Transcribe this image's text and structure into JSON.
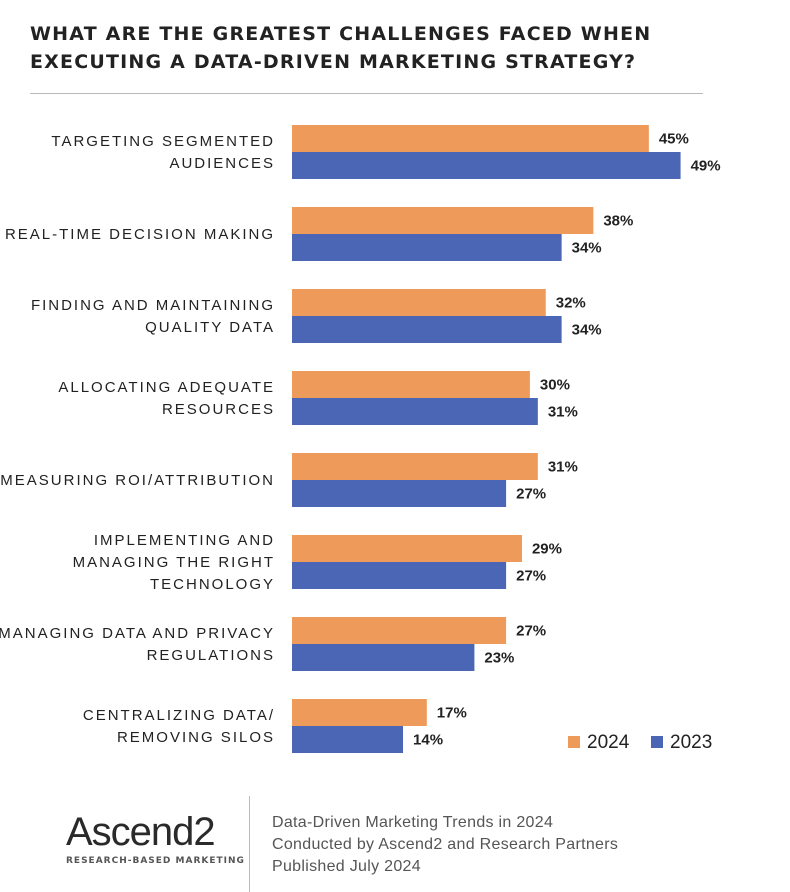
{
  "title": {
    "line1": "WHAT ARE THE GREATEST CHALLENGES FACED WHEN",
    "line2": "EXECUTING A DATA-DRIVEN MARKETING STRATEGY?"
  },
  "chart_data": {
    "type": "bar",
    "orientation": "horizontal",
    "categories": [
      [
        "TARGETING SEGMENTED",
        "AUDIENCES"
      ],
      [
        "REAL-TIME DECISION MAKING"
      ],
      [
        "FINDING AND MAINTAINING",
        "QUALITY DATA"
      ],
      [
        "ALLOCATING ADEQUATE",
        "RESOURCES"
      ],
      [
        "MEASURING ROI/ATTRIBUTION"
      ],
      [
        "IMPLEMENTING AND",
        "MANAGING THE RIGHT",
        "TECHNOLOGY"
      ],
      [
        "MANAGING DATA AND PRIVACY",
        "REGULATIONS"
      ],
      [
        "CENTRALIZING DATA/",
        "REMOVING SILOS"
      ]
    ],
    "series": [
      {
        "name": "2024",
        "color": "#ee9a5a",
        "values": [
          45,
          38,
          32,
          30,
          31,
          29,
          27,
          17
        ]
      },
      {
        "name": "2023",
        "color": "#4a66b5",
        "values": [
          49,
          34,
          34,
          31,
          27,
          27,
          23,
          14
        ]
      }
    ],
    "value_suffix": "%",
    "legend_position": "bottom-right"
  },
  "footer": {
    "logo_text": "Ascend2",
    "logo_tagline": "RESEARCH-BASED MARKETING",
    "lines": [
      "Data-Driven Marketing Trends in 2024",
      "Conducted by Ascend2 and Research Partners",
      "Published July 2024"
    ]
  }
}
